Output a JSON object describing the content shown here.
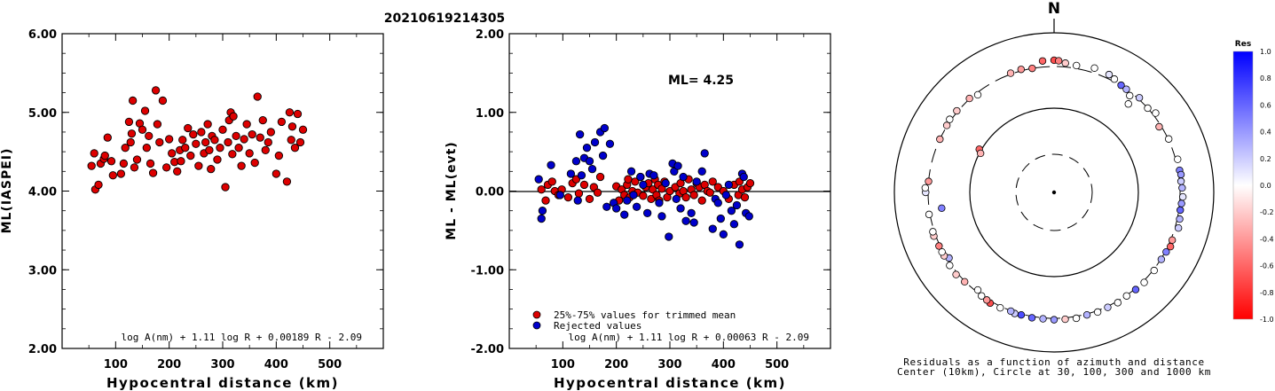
{
  "title": "20210619214305",
  "chart_data": [
    {
      "type": "scatter",
      "title": "",
      "xlabel": "Hypocentral distance (km)",
      "ylabel": "ML(IASPEI)",
      "xlim": [
        0,
        600
      ],
      "ylim": [
        2.0,
        6.0
      ],
      "xticks": [
        "100",
        "200",
        "300",
        "400",
        "500"
      ],
      "yticks": [
        "2.00",
        "3.00",
        "4.00",
        "5.00",
        "6.00"
      ],
      "formula": "log A(nm) + 1.11 log R + 0.00189 R - 2.09",
      "marker_color": "#dd0000",
      "x": [
        55,
        60,
        62,
        68,
        72,
        78,
        80,
        85,
        92,
        95,
        110,
        115,
        118,
        125,
        128,
        130,
        132,
        135,
        140,
        145,
        150,
        155,
        158,
        162,
        165,
        170,
        175,
        178,
        182,
        188,
        195,
        200,
        205,
        210,
        215,
        220,
        222,
        225,
        230,
        235,
        240,
        245,
        250,
        255,
        260,
        265,
        268,
        272,
        275,
        278,
        280,
        285,
        290,
        295,
        300,
        305,
        310,
        312,
        315,
        318,
        320,
        325,
        330,
        335,
        340,
        345,
        350,
        355,
        360,
        365,
        370,
        375,
        380,
        385,
        390,
        400,
        405,
        410,
        420,
        425,
        428,
        430,
        435,
        440,
        445,
        450
      ],
      "values": [
        4.32,
        4.48,
        4.02,
        4.08,
        4.35,
        4.41,
        4.45,
        4.68,
        4.38,
        4.2,
        4.22,
        4.35,
        4.55,
        4.88,
        4.62,
        4.73,
        5.15,
        4.3,
        4.4,
        4.86,
        4.78,
        5.02,
        4.55,
        4.7,
        4.35,
        4.23,
        5.28,
        4.85,
        4.62,
        5.15,
        4.3,
        4.66,
        4.48,
        4.37,
        4.25,
        4.52,
        4.38,
        4.65,
        4.55,
        4.8,
        4.45,
        4.72,
        4.6,
        4.32,
        4.75,
        4.48,
        4.62,
        4.85,
        4.52,
        4.28,
        4.7,
        4.65,
        4.4,
        4.55,
        4.78,
        4.05,
        4.62,
        4.9,
        5.0,
        4.47,
        4.95,
        4.7,
        4.55,
        4.32,
        4.66,
        4.85,
        4.48,
        4.72,
        4.36,
        5.2,
        4.68,
        4.9,
        4.52,
        4.62,
        4.75,
        4.22,
        4.45,
        4.88,
        4.12,
        5.0,
        4.65,
        4.82,
        4.55,
        4.98,
        4.62,
        4.78
      ]
    },
    {
      "type": "scatter",
      "title": "",
      "xlabel": "Hypocentral distance (km)",
      "ylabel": "ML - ML(evt)",
      "xlim": [
        0,
        600
      ],
      "ylim": [
        -2.0,
        2.0
      ],
      "xticks": [
        "100",
        "200",
        "300",
        "400",
        "500"
      ],
      "yticks": [
        "-2.00",
        "-1.00",
        "0.00",
        "1.00",
        "2.00"
      ],
      "annotation": "ML= 4.25",
      "formula": "log A(nm) + 1.11 log R + 0.00063 R - 2.09",
      "legend": [
        {
          "label": "25%-75% values for trimmed mean",
          "color": "#dd0000"
        },
        {
          "label": "Rejected values",
          "color": "#0000cc"
        }
      ],
      "series": [
        {
          "name": "25%-75% values for trimmed mean",
          "color": "#dd0000",
          "x": [
            60,
            68,
            72,
            80,
            85,
            92,
            98,
            110,
            118,
            125,
            130,
            140,
            150,
            158,
            165,
            170,
            200,
            205,
            210,
            215,
            220,
            222,
            225,
            230,
            235,
            240,
            245,
            250,
            255,
            260,
            265,
            268,
            272,
            275,
            278,
            280,
            285,
            290,
            295,
            300,
            310,
            318,
            320,
            325,
            330,
            335,
            340,
            345,
            350,
            355,
            360,
            365,
            370,
            375,
            380,
            390,
            400,
            410,
            420,
            428,
            430,
            435,
            440,
            445,
            450
          ],
          "values": [
            0.02,
            -0.12,
            0.08,
            0.12,
            0.0,
            -0.05,
            0.02,
            -0.08,
            0.1,
            0.15,
            -0.03,
            0.08,
            -0.1,
            0.05,
            -0.02,
            0.18,
            0.06,
            -0.12,
            0.02,
            -0.05,
            0.08,
            0.15,
            -0.08,
            0.0,
            0.12,
            -0.02,
            0.18,
            -0.06,
            0.05,
            0.1,
            -0.1,
            0.02,
            0.15,
            -0.05,
            0.08,
            -0.12,
            0.03,
            0.12,
            -0.08,
            0.0,
            0.05,
            -0.03,
            0.1,
            0.0,
            -0.08,
            0.15,
            0.02,
            -0.05,
            0.1,
            0.05,
            -0.12,
            0.08,
            0.0,
            -0.02,
            0.12,
            0.05,
            0.0,
            -0.1,
            0.08,
            -0.05,
            0.12,
            0.02,
            -0.08,
            0.05,
            0.1
          ]
        },
        {
          "name": "Rejected values",
          "color": "#0000cc",
          "x": [
            55,
            60,
            62,
            78,
            95,
            115,
            125,
            128,
            132,
            135,
            140,
            145,
            150,
            155,
            160,
            170,
            175,
            178,
            182,
            188,
            195,
            200,
            215,
            220,
            228,
            232,
            238,
            245,
            250,
            258,
            262,
            270,
            280,
            285,
            292,
            298,
            305,
            308,
            312,
            315,
            320,
            325,
            330,
            340,
            345,
            350,
            360,
            365,
            380,
            385,
            390,
            395,
            400,
            405,
            410,
            415,
            420,
            425,
            430,
            435,
            438,
            442,
            448
          ],
          "values": [
            0.15,
            -0.35,
            -0.25,
            0.33,
            -0.05,
            0.22,
            0.38,
            -0.12,
            0.72,
            0.2,
            0.42,
            0.55,
            0.38,
            0.28,
            0.62,
            0.75,
            0.45,
            0.8,
            -0.2,
            0.6,
            -0.15,
            -0.22,
            -0.3,
            -0.12,
            0.25,
            -0.05,
            -0.2,
            0.18,
            0.08,
            -0.28,
            0.22,
            0.2,
            -0.15,
            -0.32,
            0.1,
            -0.58,
            0.35,
            0.25,
            -0.1,
            0.32,
            -0.22,
            0.18,
            -0.38,
            -0.28,
            -0.4,
            0.12,
            0.25,
            0.48,
            -0.48,
            -0.1,
            -0.15,
            -0.35,
            -0.55,
            -0.05,
            0.08,
            -0.25,
            -0.42,
            -0.18,
            -0.68,
            0.22,
            0.18,
            -0.28,
            -0.32
          ]
        }
      ]
    },
    {
      "type": "scatter",
      "title": "N",
      "caption": [
        "Residuals as a function of azimuth and distance",
        "Center (10km), Circle at 30, 100, 300 and 1000 km"
      ],
      "colorbar": {
        "title": "Res",
        "ticks": [
          "1.0",
          "0.8",
          "0.6",
          "0.4",
          "0.2",
          "0.0",
          "-0.2",
          "-0.4",
          "-0.6",
          "-0.8",
          "-1.0"
        ],
        "min": -1.0,
        "max": 1.0
      },
      "circles_km": [
        30,
        100,
        300,
        1000
      ],
      "stations": [
        {
          "az": 0,
          "d": 430,
          "r": -0.7
        },
        {
          "az": 2,
          "d": 420,
          "r": -0.5
        },
        {
          "az": 355,
          "d": 425,
          "r": -0.6
        },
        {
          "az": 5,
          "d": 380,
          "r": -0.2
        },
        {
          "az": 10,
          "d": 360,
          "r": 0.0
        },
        {
          "az": 18,
          "d": 400,
          "r": 0.0
        },
        {
          "az": 25,
          "d": 385,
          "r": 0.1
        },
        {
          "az": 28,
          "d": 350,
          "r": 0.0
        },
        {
          "az": 32,
          "d": 310,
          "r": 0.6
        },
        {
          "az": 35,
          "d": 300,
          "r": 0.3
        },
        {
          "az": 38,
          "d": 285,
          "r": 0.0
        },
        {
          "az": 40,
          "d": 250,
          "r": 0.0
        },
        {
          "az": 42,
          "d": 330,
          "r": 0.2
        },
        {
          "az": 48,
          "d": 300,
          "r": 0.0
        },
        {
          "az": 52,
          "d": 360,
          "r": 0.0
        },
        {
          "az": 58,
          "d": 290,
          "r": -0.3
        },
        {
          "az": 65,
          "d": 310,
          "r": 0.0
        },
        {
          "az": 75,
          "d": 340,
          "r": 0.0
        },
        {
          "az": 80,
          "d": 330,
          "r": 0.5
        },
        {
          "az": 82,
          "d": 345,
          "r": 0.4
        },
        {
          "az": 85,
          "d": 330,
          "r": 0.2
        },
        {
          "az": 88,
          "d": 345,
          "r": 0.3
        },
        {
          "az": 92,
          "d": 360,
          "r": 0.1
        },
        {
          "az": 95,
          "d": 340,
          "r": 0.4
        },
        {
          "az": 98,
          "d": 330,
          "r": 0.6
        },
        {
          "az": 102,
          "d": 350,
          "r": 0.3
        },
        {
          "az": 106,
          "d": 370,
          "r": 0.2
        },
        {
          "az": 112,
          "d": 330,
          "r": -0.4
        },
        {
          "az": 115,
          "d": 350,
          "r": -0.6
        },
        {
          "az": 118,
          "d": 320,
          "r": 0.5
        },
        {
          "az": 122,
          "d": 310,
          "r": 0.3
        },
        {
          "az": 128,
          "d": 320,
          "r": 0.0
        },
        {
          "az": 135,
          "d": 330,
          "r": 0.0
        },
        {
          "az": 140,
          "d": 320,
          "r": 0.6
        },
        {
          "az": 145,
          "d": 310,
          "r": 0.0
        },
        {
          "az": 150,
          "d": 330,
          "r": 0.0
        },
        {
          "az": 155,
          "d": 320,
          "r": 0.2
        },
        {
          "az": 160,
          "d": 330,
          "r": 0.0
        },
        {
          "az": 165,
          "d": 320,
          "r": 0.3
        },
        {
          "az": 170,
          "d": 340,
          "r": 0.0
        },
        {
          "az": 175,
          "d": 330,
          "r": -0.2
        },
        {
          "az": 180,
          "d": 330,
          "r": 0.4
        },
        {
          "az": 185,
          "d": 320,
          "r": 0.3
        },
        {
          "az": 190,
          "d": 330,
          "r": 0.6
        },
        {
          "az": 195,
          "d": 320,
          "r": 0.7
        },
        {
          "az": 198,
          "d": 330,
          "r": 0.2
        },
        {
          "az": 200,
          "d": 310,
          "r": 0.3
        },
        {
          "az": 205,
          "d": 330,
          "r": 0.0
        },
        {
          "az": 210,
          "d": 340,
          "r": -0.7
        },
        {
          "az": 212,
          "d": 320,
          "r": -0.4
        },
        {
          "az": 215,
          "d": 310,
          "r": 0.0
        },
        {
          "az": 218,
          "d": 290,
          "r": 0.0
        },
        {
          "az": 225,
          "d": 310,
          "r": -0.3
        },
        {
          "az": 230,
          "d": 340,
          "r": -0.2
        },
        {
          "az": 235,
          "d": 330,
          "r": 0.0
        },
        {
          "az": 238,
          "d": 290,
          "r": 0.3
        },
        {
          "az": 240,
          "d": 320,
          "r": -0.2
        },
        {
          "az": 242,
          "d": 320,
          "r": 0.0
        },
        {
          "az": 245,
          "d": 320,
          "r": -0.5
        },
        {
          "az": 250,
          "d": 340,
          "r": -0.2
        },
        {
          "az": 252,
          "d": 330,
          "r": 0.0
        },
        {
          "az": 260,
          "d": 320,
          "r": 0.0
        },
        {
          "az": 262,
          "d": 240,
          "r": 0.5
        },
        {
          "az": 270,
          "d": 350,
          "r": 0.1
        },
        {
          "az": 272,
          "d": 360,
          "r": 0.0
        },
        {
          "az": 275,
          "d": 300,
          "r": -0.4
        },
        {
          "az": 295,
          "d": 300,
          "r": -0.3
        },
        {
          "az": 302,
          "d": 310,
          "r": -0.2
        },
        {
          "az": 305,
          "d": 330,
          "r": 0.0
        },
        {
          "az": 310,
          "d": 320,
          "r": -0.2
        },
        {
          "az": 318,
          "d": 310,
          "r": -0.3
        },
        {
          "az": 322,
          "d": 290,
          "r": 0.0
        },
        {
          "az": 340,
          "d": 320,
          "r": -0.3
        },
        {
          "az": 345,
          "d": 330,
          "r": -0.4
        },
        {
          "az": 350,
          "d": 300,
          "r": -0.5
        },
        {
          "az": 300,
          "d": 110,
          "r": -0.6
        },
        {
          "az": 298,
          "d": 95,
          "r": -0.3
        }
      ]
    }
  ]
}
